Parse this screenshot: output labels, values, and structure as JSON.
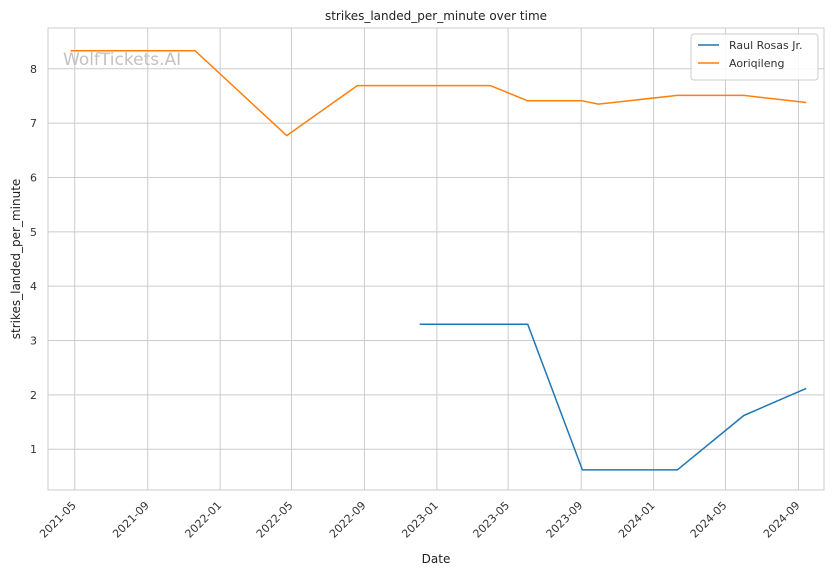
{
  "chart_data": {
    "type": "line",
    "title": "strikes_landed_per_minute over time",
    "xlabel": "Date",
    "ylabel": "strikes_landed_per_minute",
    "watermark": "WolfTickets.AI",
    "x_ticks": [
      "2021-05",
      "2021-09",
      "2022-01",
      "2022-05",
      "2022-09",
      "2023-01",
      "2023-05",
      "2023-09",
      "2024-01",
      "2024-05",
      "2024-09"
    ],
    "y_ticks": [
      1,
      2,
      3,
      4,
      5,
      6,
      7,
      8
    ],
    "ylim": [
      0.25,
      8.75
    ],
    "xlim": [
      "2021-03-17",
      "2024-10-14"
    ],
    "grid": true,
    "legend_position": "top-right",
    "series": [
      {
        "name": "Raul Rosas Jr.",
        "color": "#1f77b4",
        "points": [
          {
            "x": "2022-12-03",
            "y": 3.3
          },
          {
            "x": "2023-06-03",
            "y": 3.3
          },
          {
            "x": "2023-09-03",
            "y": 0.62
          },
          {
            "x": "2024-02-10",
            "y": 0.62
          },
          {
            "x": "2024-06-01",
            "y": 1.62
          },
          {
            "x": "2024-09-14",
            "y": 2.12
          }
        ]
      },
      {
        "name": "Aoriqileng",
        "color": "#ff7f0e",
        "points": [
          {
            "x": "2021-04-24",
            "y": 8.33
          },
          {
            "x": "2021-11-20",
            "y": 8.33
          },
          {
            "x": "2022-04-23",
            "y": 6.77
          },
          {
            "x": "2022-08-20",
            "y": 7.69
          },
          {
            "x": "2023-04-01",
            "y": 7.69
          },
          {
            "x": "2023-06-03",
            "y": 7.41
          },
          {
            "x": "2023-09-03",
            "y": 7.41
          },
          {
            "x": "2023-09-30",
            "y": 7.35
          },
          {
            "x": "2024-02-10",
            "y": 7.51
          },
          {
            "x": "2024-06-01",
            "y": 7.51
          },
          {
            "x": "2024-09-14",
            "y": 7.38
          }
        ]
      }
    ]
  }
}
